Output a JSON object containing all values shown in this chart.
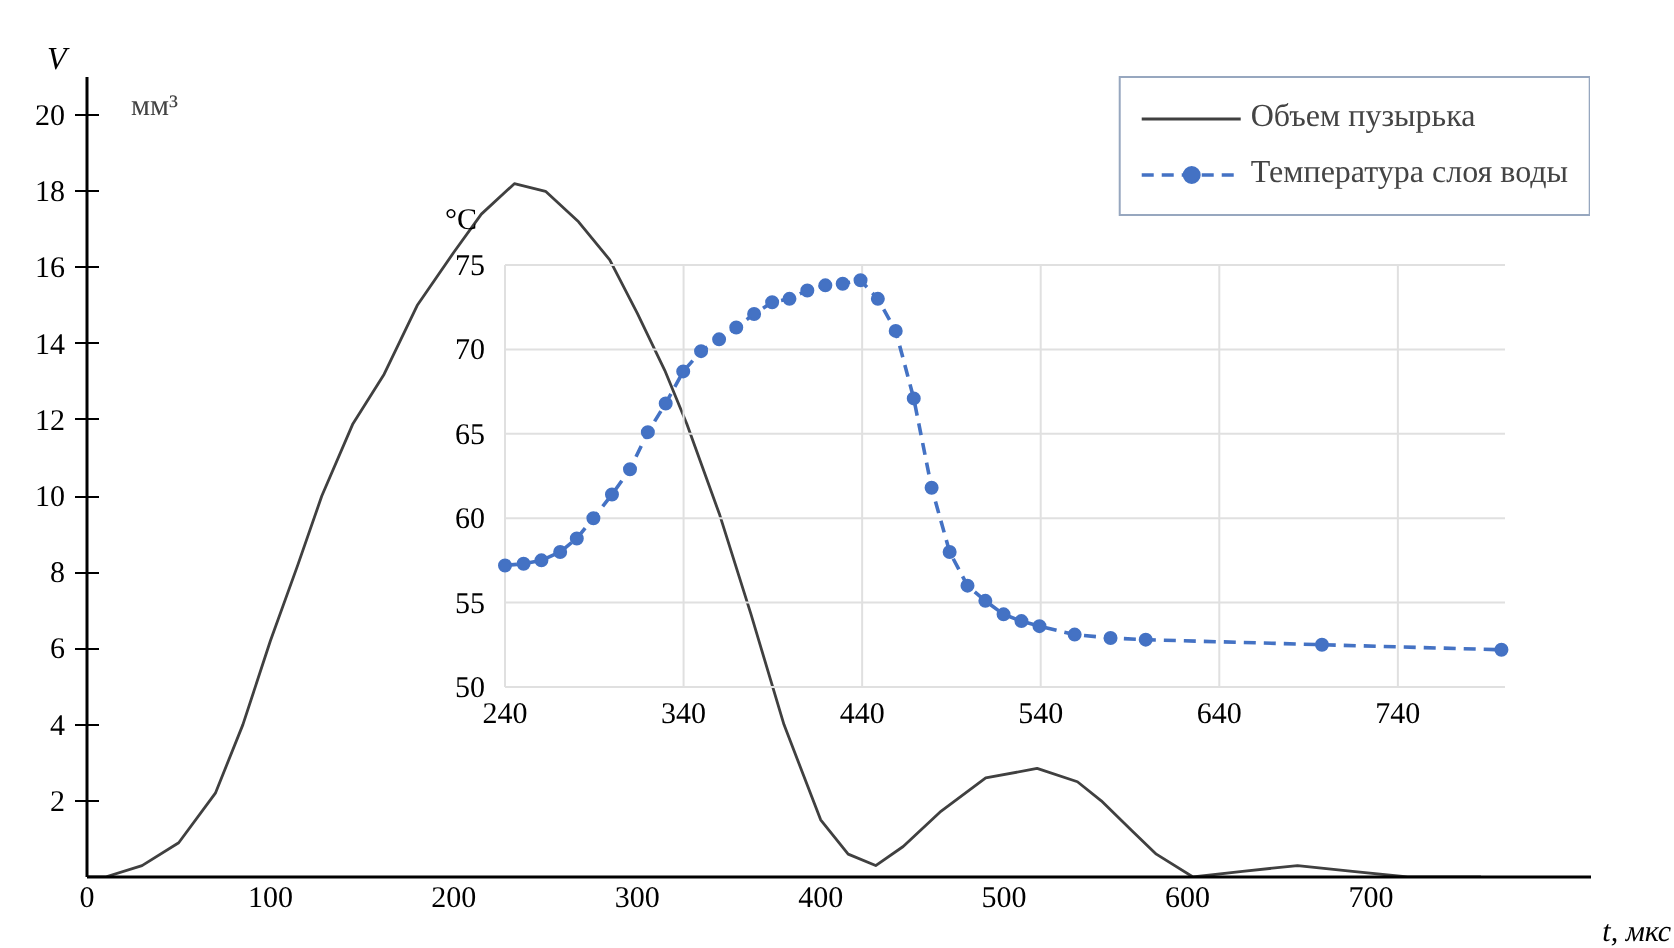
{
  "chart_data": [
    {
      "type": "line",
      "xlabel": "t, мкс",
      "ylabel": "V",
      "annotations": [
        "мм³"
      ],
      "x": [
        0,
        10,
        30,
        50,
        70,
        85,
        100,
        115,
        128,
        145,
        162,
        180,
        200,
        215,
        233,
        250,
        268,
        285,
        300,
        315,
        327,
        345,
        362,
        380,
        400,
        415,
        430,
        445,
        465,
        490,
        518,
        540,
        553,
        570,
        583,
        603,
        630,
        660,
        690,
        720,
        760
      ],
      "series": [
        {
          "name": "Объем пузырька",
          "color": "#404040",
          "values": [
            0,
            0,
            0.3,
            0.9,
            2.2,
            4,
            6.2,
            8.2,
            10,
            11.9,
            13.2,
            15,
            16.4,
            17.4,
            18.2,
            18,
            17.2,
            16.2,
            14.8,
            13.3,
            11.9,
            9.5,
            6.9,
            4,
            1.5,
            0.6,
            0.3,
            0.8,
            1.7,
            2.6,
            2.85,
            2.5,
            2,
            1.2,
            0.6,
            0,
            0.15,
            0.3,
            0.15,
            0,
            0
          ]
        }
      ],
      "xlim": [
        0,
        820
      ],
      "ylim": [
        0,
        21
      ],
      "xticks": [
        0,
        100,
        200,
        300,
        400,
        500,
        600,
        700
      ],
      "yticks": [
        2,
        4,
        6,
        8,
        10,
        12,
        14,
        16,
        18,
        20
      ],
      "line_style": "solid",
      "legend": "top right"
    },
    {
      "type": "line",
      "ylabel": "°C",
      "x": [
        240,
        250.4,
        260.4,
        270.9,
        280.2,
        289.5,
        299.9,
        310,
        320,
        330,
        339.8,
        349.8,
        359.9,
        369.5,
        379.5,
        389.6,
        399.3,
        409.3,
        419.4,
        429.1,
        439.1,
        448.8,
        458.8,
        468.9,
        478.9,
        489,
        499,
        509,
        519.2,
        529.2,
        539.3,
        559,
        579.1,
        598.8,
        697.5,
        798
      ],
      "series": [
        {
          "name": "Температура слоя воды",
          "color": "#4472c4",
          "values": [
            57.2,
            57.3,
            57.5,
            58,
            58.8,
            60,
            61.4,
            62.9,
            65.1,
            66.8,
            68.7,
            69.9,
            70.6,
            71.3,
            72.1,
            72.8,
            73,
            73.5,
            73.8,
            73.9,
            74.1,
            73,
            71.1,
            67.1,
            61.8,
            58,
            56,
            55.1,
            54.3,
            53.9,
            53.6,
            53.1,
            52.9,
            52.8,
            52.5,
            52.2
          ]
        }
      ],
      "xlim": [
        240,
        800
      ],
      "ylim": [
        50,
        75
      ],
      "xticks": [
        240,
        340,
        440,
        540,
        640,
        740
      ],
      "yticks": [
        50,
        55,
        60,
        65,
        70,
        75
      ],
      "grid": true,
      "marker": "circle",
      "line_style": "dashed",
      "legend": "top right"
    }
  ]
}
